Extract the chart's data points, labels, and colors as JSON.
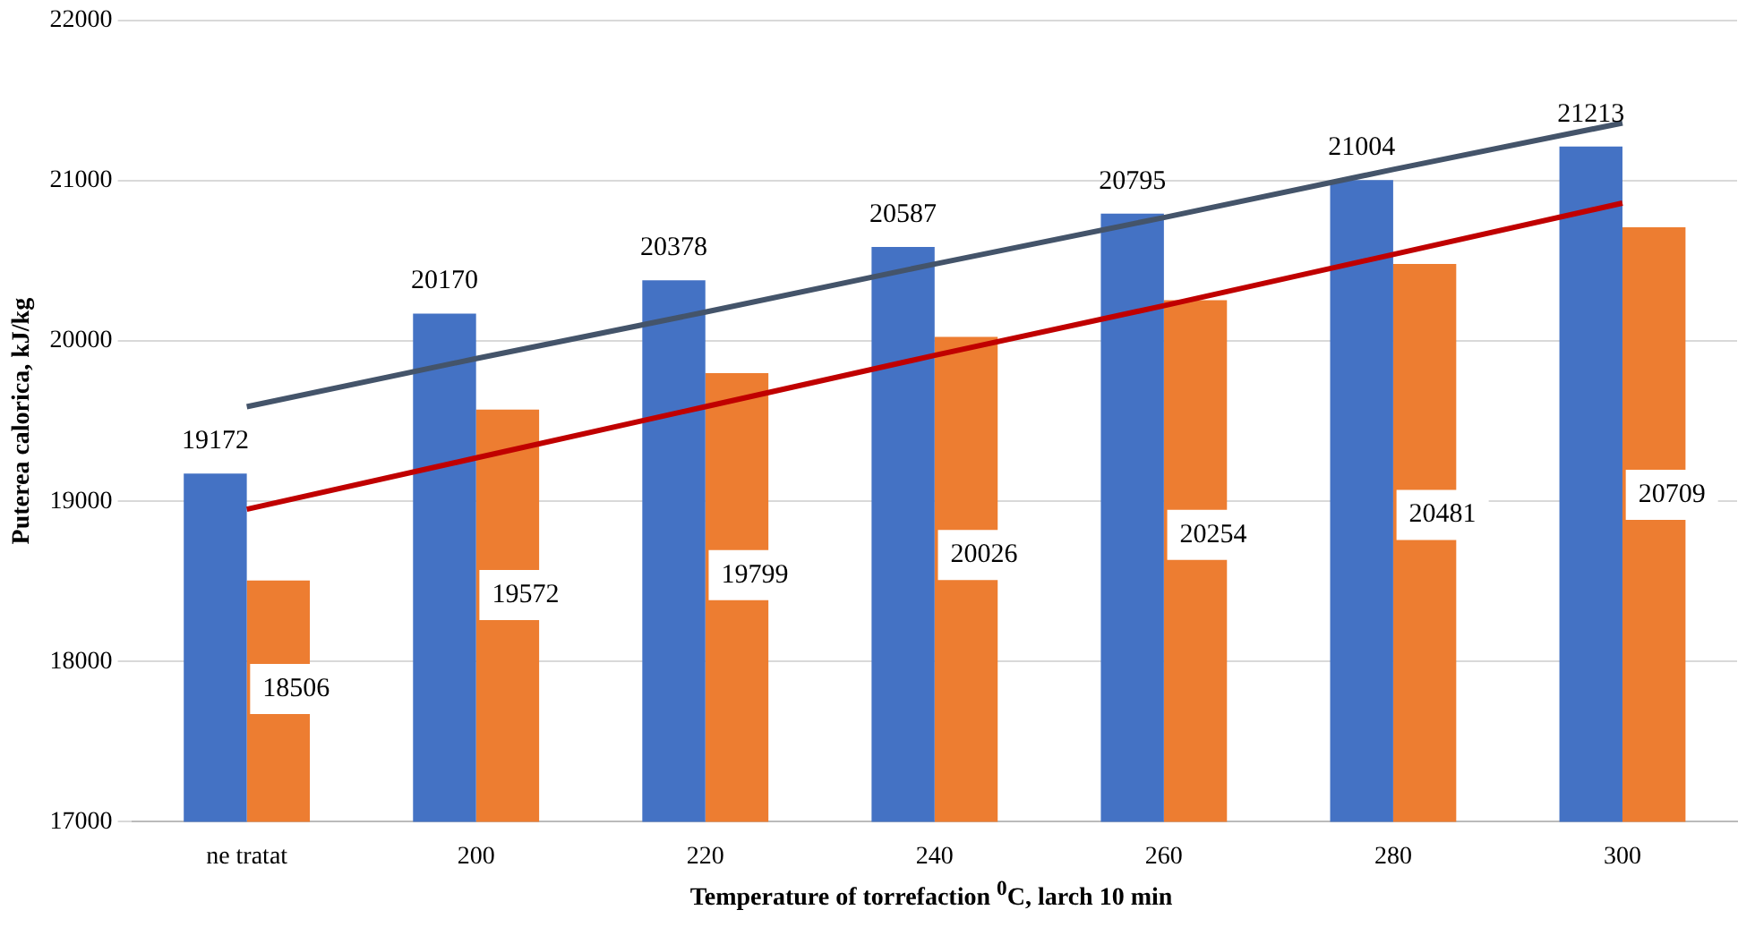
{
  "chart_data": {
    "type": "bar",
    "xlabel": "Temperature of torrefaction $^{0}$C, larch 10 min",
    "ylabel": "Puterea calorica, kJ/kg",
    "categories": [
      "ne tratat",
      "200",
      "220",
      "240",
      "260",
      "280",
      "300"
    ],
    "series": [
      {
        "color": "#4472c4",
        "values": [
          19172,
          20170,
          20378,
          20587,
          20795,
          21004,
          21213
        ],
        "value_labels": [
          "19172",
          "20170",
          "20378",
          "20587",
          "20795",
          "21004",
          "21213"
        ]
      },
      {
        "color": "#ed7d31",
        "values": [
          18506,
          19572,
          19799,
          20026,
          20254,
          20481,
          20709
        ],
        "value_labels": [
          "18506",
          "19572",
          "19799",
          "20026",
          "20254",
          "20481",
          "20709"
        ]
      },
      {
        "type": "line",
        "color": "#44546a",
        "values": [
          19590,
          19890,
          20180,
          20480,
          20770,
          21070,
          21360
        ]
      },
      {
        "type": "line",
        "color": "#c00000",
        "values": [
          18950,
          19270,
          19590,
          19910,
          20220,
          20540,
          20860
        ]
      }
    ],
    "ylim": [
      17000,
      22000
    ],
    "yticks": [
      17000,
      18000,
      19000,
      20000,
      21000,
      22000
    ],
    "grid": "y",
    "legend": false,
    "marker": "none",
    "line_style": "solid"
  }
}
